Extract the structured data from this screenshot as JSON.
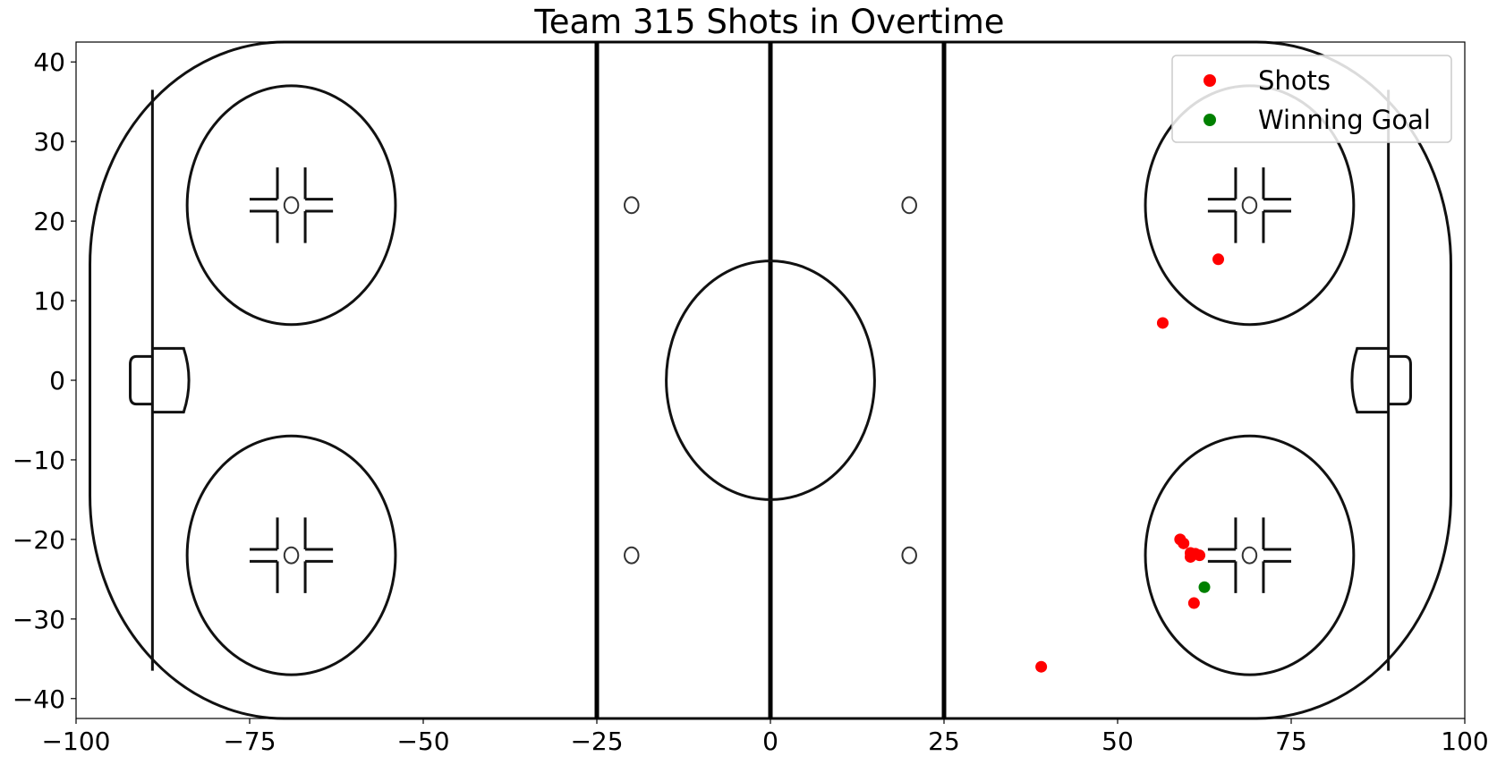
{
  "chart_data": {
    "type": "scatter",
    "title": "Team 315 Shots in Overtime",
    "xlabel": "",
    "ylabel": "",
    "xlim": [
      -100,
      100
    ],
    "ylim": [
      -42.5,
      42.5
    ],
    "x_ticks": [
      -100,
      -75,
      -50,
      -25,
      0,
      25,
      50,
      75,
      100
    ],
    "x_tick_labels": [
      "−100",
      "−75",
      "−50",
      "−25",
      "0",
      "25",
      "50",
      "75",
      "100"
    ],
    "y_ticks": [
      40,
      30,
      20,
      10,
      0,
      -10,
      -20,
      -30,
      -40
    ],
    "y_tick_labels": [
      "40",
      "30",
      "20",
      "10",
      "0",
      "−10",
      "−20",
      "−30",
      "−40"
    ],
    "grid": false,
    "legend_position": "top-right",
    "background": "hockey-rink",
    "series": [
      {
        "name": "Shots",
        "color": "#ff0000",
        "points": [
          {
            "x": 64.5,
            "y": 15.2
          },
          {
            "x": 56.5,
            "y": 7.2
          },
          {
            "x": 59.0,
            "y": -20.0
          },
          {
            "x": 59.5,
            "y": -20.5
          },
          {
            "x": 60.5,
            "y": -21.7
          },
          {
            "x": 60.5,
            "y": -22.2
          },
          {
            "x": 61.2,
            "y": -21.8
          },
          {
            "x": 61.8,
            "y": -22.0
          },
          {
            "x": 61.0,
            "y": -28.0
          },
          {
            "x": 39.0,
            "y": -36.0
          }
        ]
      },
      {
        "name": "Winning Goal",
        "color": "#008000",
        "points": [
          {
            "x": 62.5,
            "y": -26.0
          }
        ]
      }
    ]
  }
}
